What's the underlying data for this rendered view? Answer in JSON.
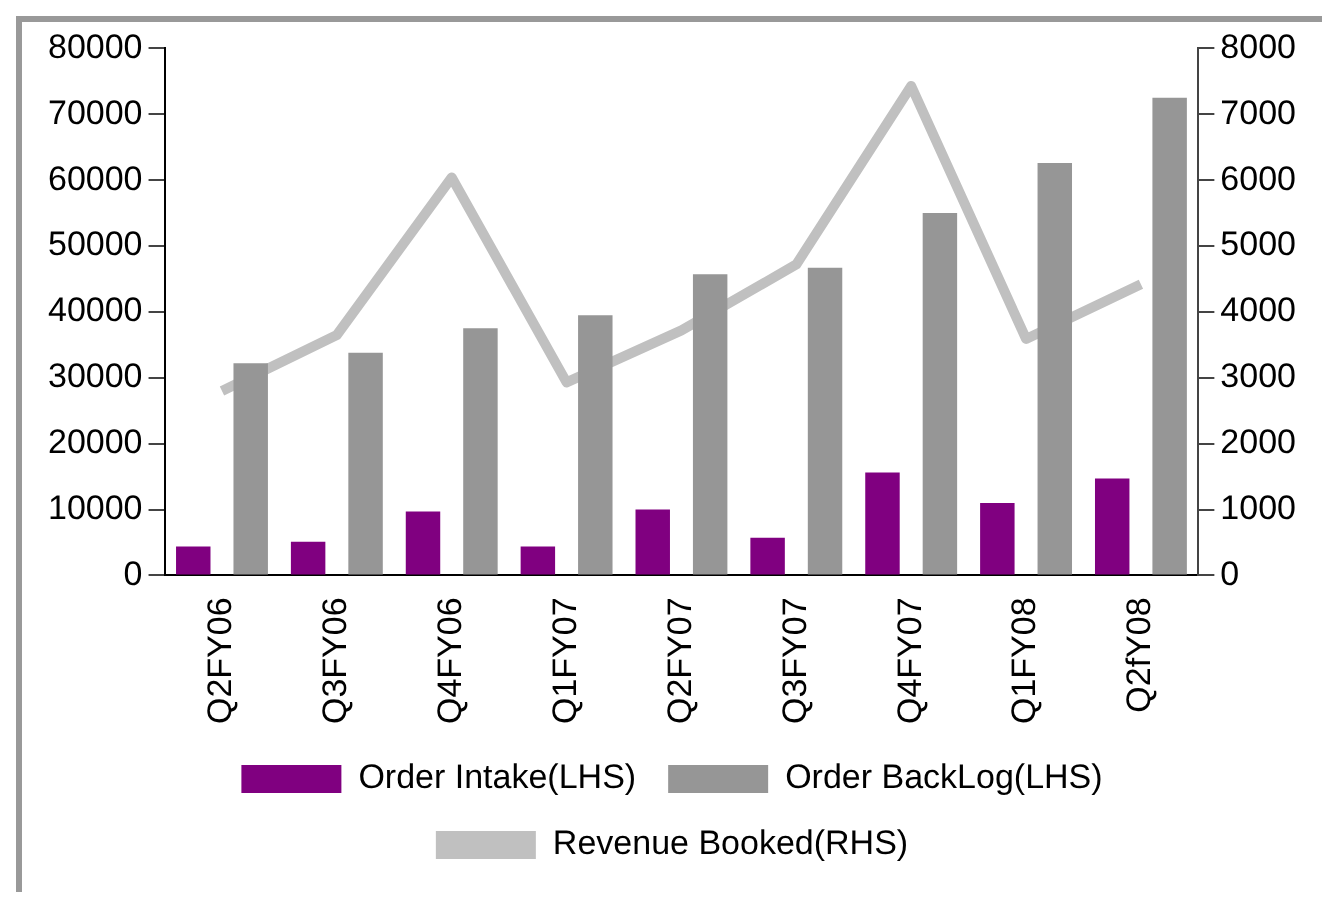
{
  "chart_data": {
    "type": "bar",
    "categories": [
      "Q2FY06",
      "Q3FY06",
      "Q4FY06",
      "Q1FY07",
      "Q2FY07",
      "Q3FY07",
      "Q4FY07",
      "Q1FY08",
      "Q2fY08"
    ],
    "series": [
      {
        "name": "Order Intake(LHS)",
        "color": "#800080",
        "values": [
          4400,
          5100,
          9700,
          4400,
          10000,
          5700,
          15600,
          11000,
          14700
        ]
      },
      {
        "name": "Order BackLog(LHS)",
        "color": "#969696",
        "values": [
          32200,
          33800,
          37500,
          39500,
          45700,
          46700,
          55000,
          62600,
          72500
        ]
      },
      {
        "name": "Revenue Booked(RHS)",
        "type": "line",
        "axis": "y2",
        "color": "#c0c0c0",
        "values": [
          2800,
          3650,
          6040,
          2930,
          3720,
          4720,
          7430,
          3590,
          4420
        ]
      }
    ],
    "ylim": [
      0,
      80000
    ],
    "yticks": [
      0,
      10000,
      20000,
      30000,
      40000,
      50000,
      60000,
      70000,
      80000
    ],
    "y2lim": [
      0,
      8000
    ],
    "y2ticks": [
      0,
      1000,
      2000,
      3000,
      4000,
      5000,
      6000,
      7000,
      8000
    ],
    "grid": false,
    "legend": "bottom",
    "marker": "none"
  }
}
